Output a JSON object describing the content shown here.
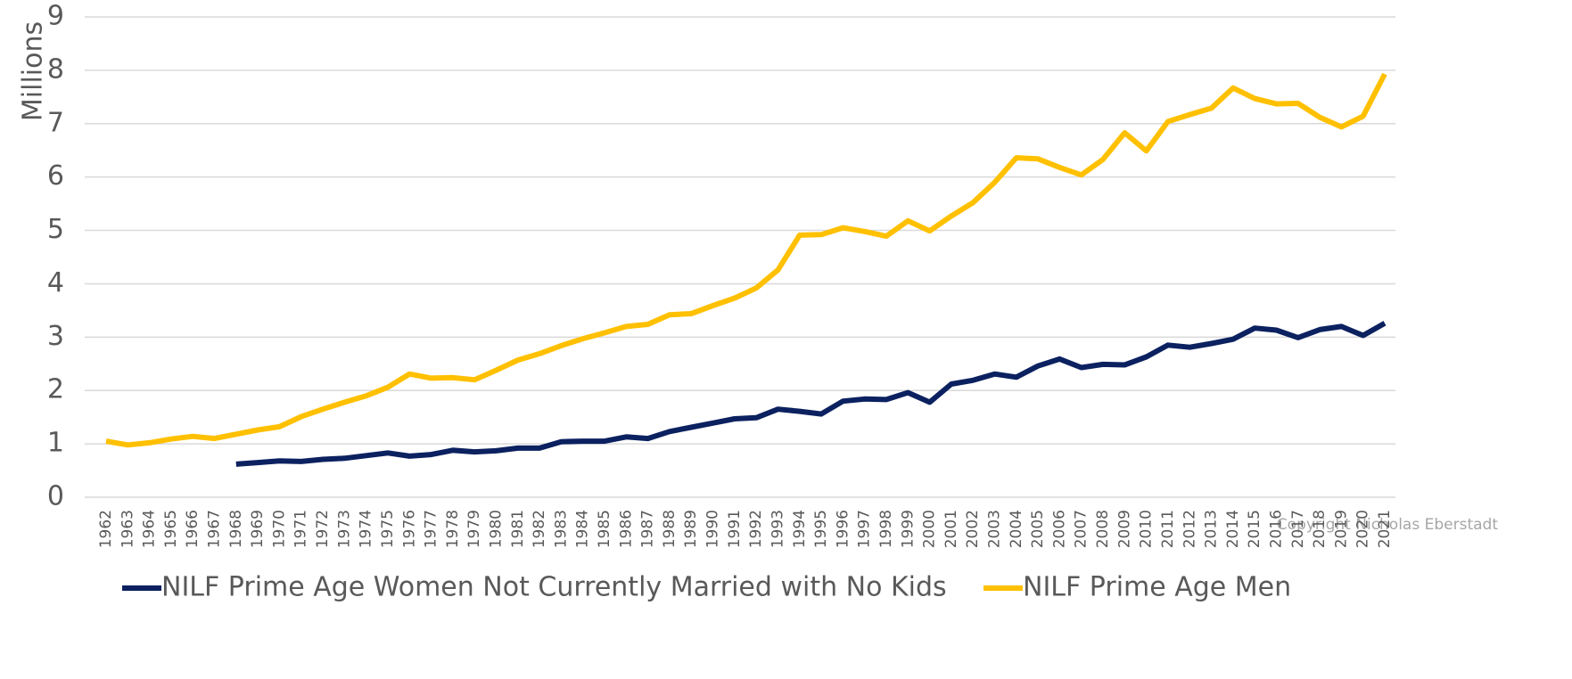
{
  "chart_data": {
    "type": "line",
    "y_label": "Millions",
    "annotation": "Copyright Nicholas Eberstadt",
    "categories": [
      "1962",
      "1963",
      "1964",
      "1965",
      "1966",
      "1967",
      "1968",
      "1969",
      "1970",
      "1971",
      "1972",
      "1973",
      "1974",
      "1975",
      "1976",
      "1977",
      "1978",
      "1979",
      "1980",
      "1981",
      "1982",
      "1983",
      "1984",
      "1985",
      "1986",
      "1987",
      "1988",
      "1989",
      "1990",
      "1991",
      "1992",
      "1993",
      "1994",
      "1995",
      "1996",
      "1997",
      "1998",
      "1999",
      "2000",
      "2001",
      "2002",
      "2003",
      "2004",
      "2005",
      "2006",
      "2007",
      "2008",
      "2009",
      "2010",
      "2011",
      "2012",
      "2013",
      "2014",
      "2015",
      "2016",
      "2017",
      "2018",
      "2019",
      "2020",
      "2021"
    ],
    "series": [
      {
        "name": "NILF Prime Age Women Not Currently Married with No Kids",
        "color": "#0b2160",
        "values": [
          null,
          null,
          null,
          null,
          null,
          null,
          0.62,
          0.65,
          0.68,
          0.67,
          0.71,
          0.73,
          0.78,
          0.83,
          0.77,
          0.8,
          0.88,
          0.85,
          0.87,
          0.92,
          0.92,
          1.04,
          1.05,
          1.05,
          1.13,
          1.1,
          1.23,
          1.31,
          1.39,
          1.47,
          1.49,
          1.65,
          1.61,
          1.56,
          1.8,
          1.84,
          1.83,
          1.96,
          1.78,
          2.12,
          2.19,
          2.31,
          2.25,
          2.46,
          2.59,
          2.43,
          2.49,
          2.48,
          2.63,
          2.85,
          2.81,
          2.88,
          2.96,
          3.17,
          3.13,
          2.99,
          3.14,
          3.2,
          3.03,
          3.26
        ]
      },
      {
        "name": "NILF Prime Age Men",
        "color": "#ffc000",
        "values": [
          1.05,
          0.98,
          1.02,
          1.09,
          1.14,
          1.1,
          1.18,
          1.26,
          1.32,
          1.51,
          1.65,
          1.78,
          1.9,
          2.06,
          2.31,
          2.23,
          2.24,
          2.2,
          2.38,
          2.57,
          2.69,
          2.84,
          2.97,
          3.08,
          3.2,
          3.24,
          3.42,
          3.44,
          3.59,
          3.73,
          3.92,
          4.26,
          4.91,
          4.92,
          5.05,
          4.98,
          4.89,
          5.18,
          4.99,
          5.27,
          5.52,
          5.9,
          6.36,
          6.34,
          6.18,
          6.04,
          6.33,
          6.83,
          6.49,
          7.04,
          7.17,
          7.29,
          7.67,
          7.47,
          7.37,
          7.38,
          7.12,
          6.94,
          7.14,
          7.93
        ]
      }
    ],
    "ylim": [
      0,
      9
    ],
    "yticks": [
      0,
      1,
      2,
      3,
      4,
      5,
      6,
      7,
      8,
      9
    ],
    "grid": true,
    "legend": "bottom"
  }
}
